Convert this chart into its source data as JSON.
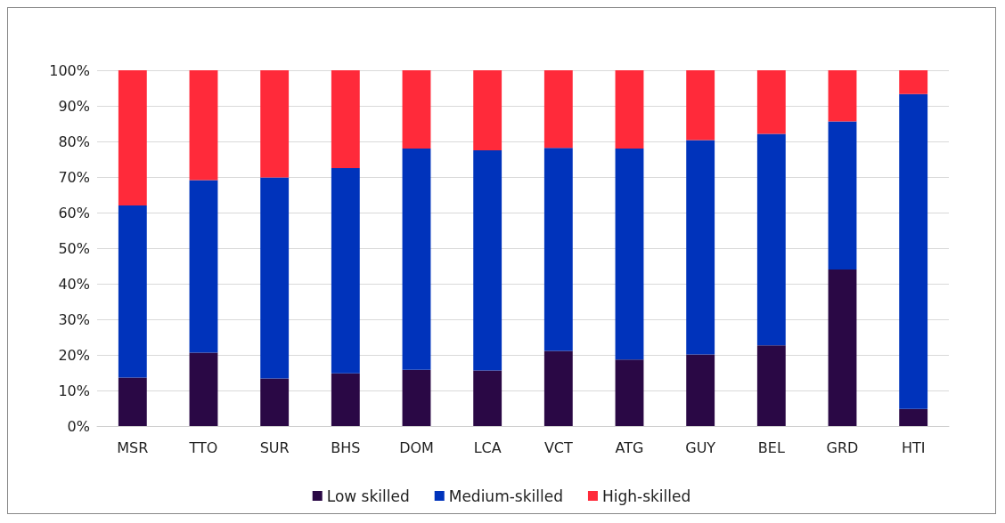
{
  "chart_data": {
    "type": "bar",
    "stacked": true,
    "categories": [
      "MSR",
      "TTO",
      "SUR",
      "BHS",
      "DOM",
      "LCA",
      "VCT",
      "ATG",
      "GUY",
      "BEL",
      "GRD",
      "HTI"
    ],
    "series": [
      {
        "name": "Low skilled",
        "color": "#2a0845",
        "values": [
          13.6,
          20.6,
          13.4,
          14.8,
          15.8,
          15.6,
          21.1,
          18.7,
          20.1,
          22.7,
          44.0,
          4.8
        ]
      },
      {
        "name": "Medium-skilled",
        "color": "#0033bb",
        "values": [
          48.4,
          48.5,
          56.5,
          57.7,
          62.2,
          61.9,
          57.1,
          59.3,
          60.3,
          59.4,
          41.6,
          88.5
        ]
      },
      {
        "name": "High-skilled",
        "color": "#ff2a3a",
        "values": [
          38.0,
          30.9,
          30.1,
          27.5,
          22.0,
          22.5,
          21.8,
          22.0,
          19.6,
          17.9,
          14.4,
          6.7
        ]
      }
    ],
    "ylim": [
      0,
      100
    ],
    "yticks": [
      {
        "value": 0,
        "label": "0%"
      },
      {
        "value": 10,
        "label": "10%"
      },
      {
        "value": 20,
        "label": "20%"
      },
      {
        "value": 30,
        "label": "30%"
      },
      {
        "value": 40,
        "label": "40%"
      },
      {
        "value": 50,
        "label": "50%"
      },
      {
        "value": 60,
        "label": "60%"
      },
      {
        "value": 70,
        "label": "70%"
      },
      {
        "value": 80,
        "label": "80%"
      },
      {
        "value": 90,
        "label": "90%"
      },
      {
        "value": 100,
        "label": "100%"
      }
    ],
    "grid": "y",
    "legend": "bottom"
  }
}
